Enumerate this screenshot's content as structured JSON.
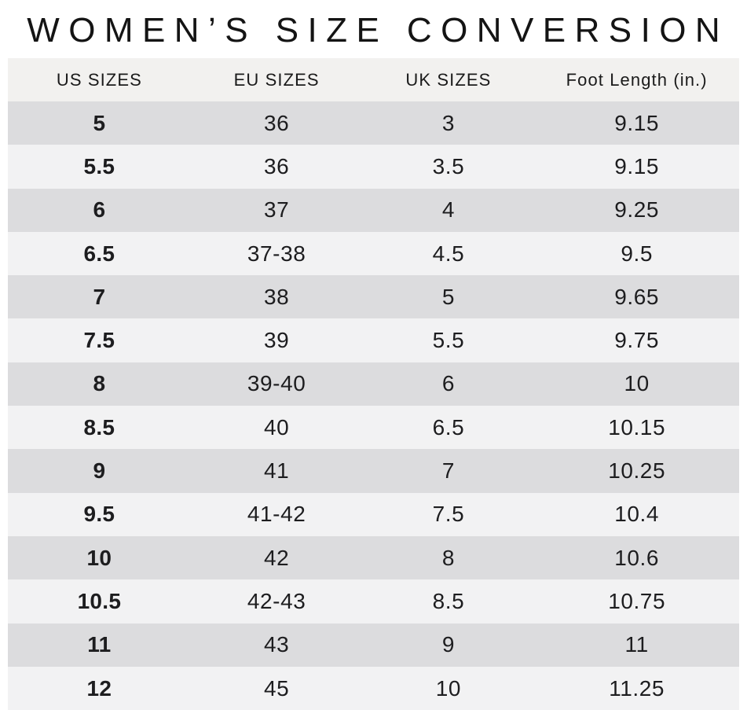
{
  "title": "WOMEN’S SIZE CONVERSION",
  "table": {
    "headers": [
      "US SIZES",
      "EU SIZES",
      "UK SIZES",
      "Foot Length (in.)"
    ],
    "rows": [
      [
        "5",
        "36",
        "3",
        "9.15"
      ],
      [
        "5.5",
        "36",
        "3.5",
        "9.15"
      ],
      [
        "6",
        "37",
        "4",
        "9.25"
      ],
      [
        "6.5",
        "37-38",
        "4.5",
        "9.5"
      ],
      [
        "7",
        "38",
        "5",
        "9.65"
      ],
      [
        "7.5",
        "39",
        "5.5",
        "9.75"
      ],
      [
        "8",
        "39-40",
        "6",
        "10"
      ],
      [
        "8.5",
        "40",
        "6.5",
        "10.15"
      ],
      [
        "9",
        "41",
        "7",
        "10.25"
      ],
      [
        "9.5",
        "41-42",
        "7.5",
        "10.4"
      ],
      [
        "10",
        "42",
        "8",
        "10.6"
      ],
      [
        "10.5",
        "42-43",
        "8.5",
        "10.75"
      ],
      [
        "11",
        "43",
        "9",
        "11"
      ],
      [
        "12",
        "45",
        "10",
        "11.25"
      ]
    ]
  },
  "colors": {
    "row_dark": "#dcdcde",
    "row_light": "#f2f2f3",
    "header_bg": "#f2f1ef",
    "text": "#1d1d1f",
    "page_bg": "#ffffff"
  },
  "chart_data": {
    "type": "table",
    "title": "WOMEN’S SIZE CONVERSION",
    "columns": [
      "US SIZES",
      "EU SIZES",
      "UK SIZES",
      "Foot Length (in.)"
    ],
    "rows": [
      [
        "5",
        "36",
        "3",
        "9.15"
      ],
      [
        "5.5",
        "36",
        "3.5",
        "9.15"
      ],
      [
        "6",
        "37",
        "4",
        "9.25"
      ],
      [
        "6.5",
        "37-38",
        "4.5",
        "9.5"
      ],
      [
        "7",
        "38",
        "5",
        "9.65"
      ],
      [
        "7.5",
        "39",
        "5.5",
        "9.75"
      ],
      [
        "8",
        "39-40",
        "6",
        "10"
      ],
      [
        "8.5",
        "40",
        "6.5",
        "10.15"
      ],
      [
        "9",
        "41",
        "7",
        "10.25"
      ],
      [
        "9.5",
        "41-42",
        "7.5",
        "10.4"
      ],
      [
        "10",
        "42",
        "8",
        "10.6"
      ],
      [
        "10.5",
        "42-43",
        "8.5",
        "10.75"
      ],
      [
        "11",
        "43",
        "9",
        "11"
      ],
      [
        "12",
        "45",
        "10",
        "11.25"
      ]
    ],
    "layout_hints": {
      "row_striping": "alternating dark/light gray starting dark",
      "first_column_bold": true,
      "grid": false,
      "alignment": "center"
    }
  }
}
